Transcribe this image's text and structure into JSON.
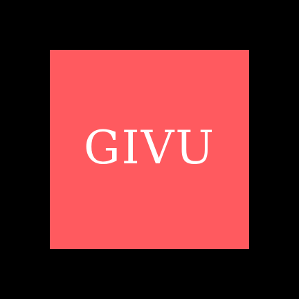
{
  "logo": {
    "wordmark": "GIVU"
  },
  "colors": {
    "background": "#000000",
    "tile": "#ff5a5f",
    "text": "#ffffff"
  }
}
